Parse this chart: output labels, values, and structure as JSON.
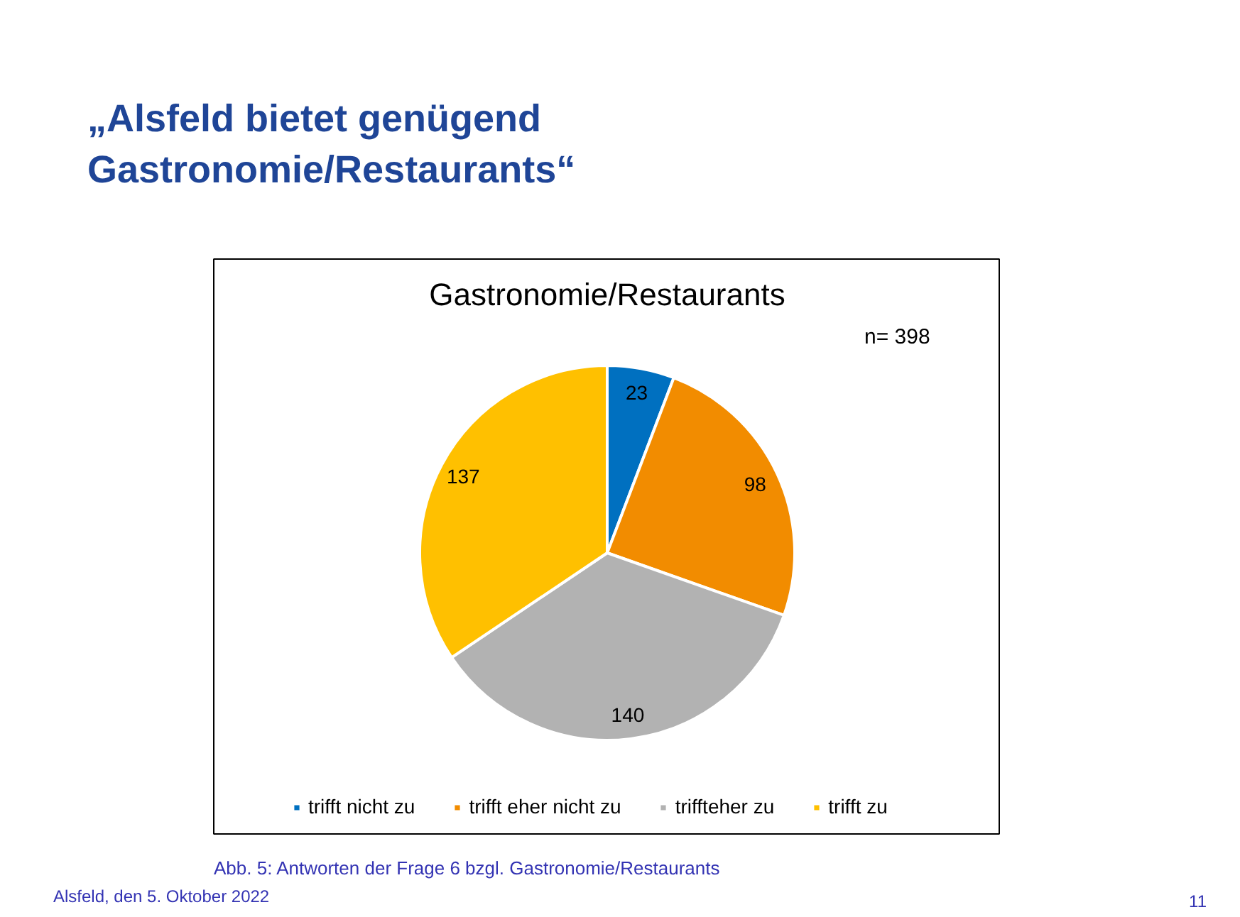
{
  "chart_data": {
    "type": "pie",
    "title": "„Alsfeld bietet genügend Gastronomie/Restaurants“",
    "subtitle": "Gastronomie/Restaurants",
    "categories": [
      "trifft nicht zu",
      "trifft eher nicht zu",
      "triffteher zu",
      "trifft zu"
    ],
    "values": [
      23,
      98,
      140,
      137
    ],
    "colors": [
      "#0070c0",
      "#f28c00",
      "#b2b2b2",
      "#ffc000"
    ],
    "data_labels": true,
    "legend": "bottom",
    "annotations": [
      "n= 398",
      "Abb. 5: Antworten der Frage 6 bzgl. Gastronomie/Restaurants",
      "Alsfeld, den 5. Oktober 2022",
      "11"
    ]
  }
}
